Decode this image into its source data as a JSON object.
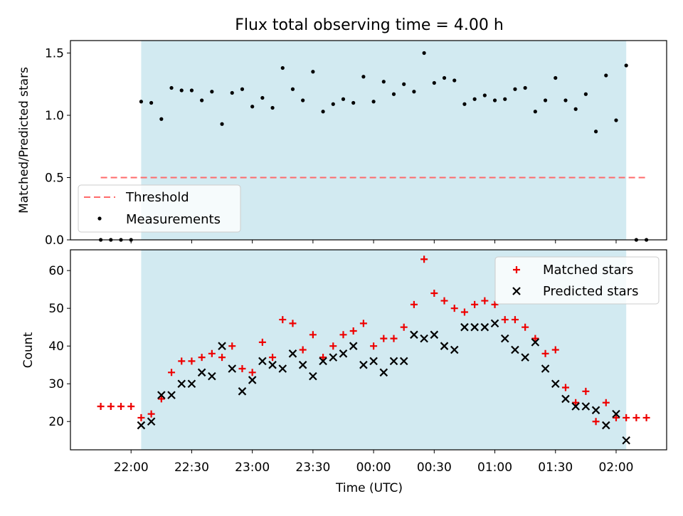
{
  "title": "Flux total observing time = 4.00 h",
  "colors": {
    "observing_span": "#add8e6",
    "threshold": "#ff6a6a",
    "measurement": "#000000",
    "matched": "#ee0000",
    "predicted": "#000000"
  },
  "chart_data": [
    {
      "type": "scatter",
      "ylabel": "Matched/Predicted stars",
      "xlabel": "",
      "ylim": [
        0,
        1.6
      ],
      "yticks": [
        "0.0",
        "0.5",
        "1.0",
        "1.5"
      ],
      "shaded_span_minutes": [
        5,
        245
      ],
      "legend_position": "lower-left",
      "threshold": {
        "name": "Threshold",
        "value": 0.5,
        "x_range_minutes": [
          -15,
          255
        ]
      },
      "series": [
        {
          "name": "Measurements",
          "x_minutes": [
            -15,
            -10,
            -5,
            0,
            5,
            10,
            15,
            20,
            25,
            30,
            35,
            40,
            45,
            50,
            55,
            60,
            65,
            70,
            75,
            80,
            85,
            90,
            95,
            100,
            105,
            110,
            115,
            120,
            125,
            130,
            135,
            140,
            145,
            150,
            155,
            160,
            165,
            170,
            175,
            180,
            185,
            190,
            195,
            200,
            205,
            210,
            215,
            220,
            225,
            230,
            235,
            240,
            245,
            250,
            255
          ],
          "values": [
            0.0,
            0.0,
            0.0,
            0.0,
            1.11,
            1.1,
            0.97,
            1.22,
            1.2,
            1.2,
            1.12,
            1.19,
            0.93,
            1.18,
            1.21,
            1.07,
            1.14,
            1.06,
            1.38,
            1.21,
            1.12,
            1.35,
            1.03,
            1.09,
            1.13,
            1.1,
            1.31,
            1.11,
            1.27,
            1.17,
            1.25,
            1.19,
            1.5,
            1.26,
            1.3,
            1.28,
            1.09,
            1.13,
            1.16,
            1.12,
            1.13,
            1.21,
            1.22,
            1.03,
            1.12,
            1.3,
            1.12,
            1.05,
            1.17,
            0.87,
            1.32,
            0.96,
            1.4,
            0.0,
            0.0
          ]
        }
      ]
    },
    {
      "type": "scatter",
      "ylabel": "Count",
      "xlabel": "Time (UTC)",
      "ylim": [
        12.5,
        65.5
      ],
      "yticks": [
        "20",
        "30",
        "40",
        "50",
        "60"
      ],
      "xticks": [
        "22:00",
        "22:30",
        "23:00",
        "23:30",
        "00:00",
        "00:30",
        "01:00",
        "01:30",
        "02:00"
      ],
      "xlim_minutes": [
        -30,
        265
      ],
      "shaded_span_minutes": [
        5,
        245
      ],
      "legend_position": "top-right",
      "series": [
        {
          "name": "Matched stars",
          "x_minutes": [
            -15,
            -10,
            -5,
            0,
            5,
            10,
            15,
            20,
            25,
            30,
            35,
            40,
            45,
            50,
            55,
            60,
            65,
            70,
            75,
            80,
            85,
            90,
            95,
            100,
            105,
            110,
            115,
            120,
            125,
            130,
            135,
            140,
            145,
            150,
            155,
            160,
            165,
            170,
            175,
            180,
            185,
            190,
            195,
            200,
            205,
            210,
            215,
            220,
            225,
            230,
            235,
            240,
            245,
            250,
            255
          ],
          "values": [
            24,
            24,
            24,
            24,
            21,
            22,
            26,
            33,
            36,
            36,
            37,
            38,
            37,
            40,
            34,
            33,
            41,
            37,
            47,
            46,
            39,
            43,
            37,
            40,
            43,
            44,
            46,
            40,
            42,
            42,
            45,
            51,
            63,
            54,
            52,
            50,
            49,
            51,
            52,
            51,
            47,
            47,
            45,
            42,
            38,
            39,
            29,
            25,
            28,
            20,
            25,
            21,
            21,
            21,
            21
          ]
        },
        {
          "name": "Predicted stars",
          "x_minutes": [
            5,
            10,
            15,
            20,
            25,
            30,
            35,
            40,
            45,
            50,
            55,
            60,
            65,
            70,
            75,
            80,
            85,
            90,
            95,
            100,
            105,
            110,
            115,
            120,
            125,
            130,
            135,
            140,
            145,
            150,
            155,
            160,
            165,
            170,
            175,
            180,
            185,
            190,
            195,
            200,
            205,
            210,
            215,
            220,
            225,
            230,
            235,
            240,
            245
          ],
          "values": [
            19,
            20,
            27,
            27,
            30,
            30,
            33,
            32,
            40,
            34,
            28,
            31,
            36,
            35,
            34,
            38,
            35,
            32,
            36,
            37,
            38,
            40,
            35,
            36,
            33,
            36,
            36,
            43,
            42,
            43,
            40,
            39,
            45,
            45,
            45,
            46,
            42,
            39,
            37,
            41,
            34,
            30,
            26,
            24,
            24,
            23,
            19,
            22,
            15
          ]
        }
      ]
    }
  ]
}
